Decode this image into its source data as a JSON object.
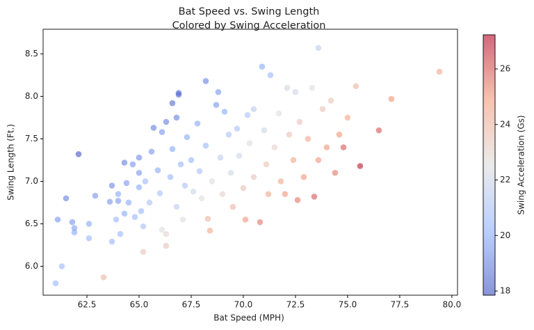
{
  "chart_data": {
    "type": "scatter",
    "title": "Bat Speed vs. Swing Length",
    "subtitle": "Colored by Swing Acceleration",
    "x_label": "Bat Speed (MPH)",
    "y_label": "Swing Length (Ft.)",
    "colorbar_label": "Swing Acceleration (Gs)",
    "colormap": "coolwarm",
    "alpha": 0.6,
    "xlim": [
      60.4,
      80.27
    ],
    "ylim": [
      5.66,
      8.79
    ],
    "clim": [
      17.85,
      27.23
    ],
    "xticks": [
      62.5,
      {
        "value": 65.0,
        "label": "65.0"
      },
      67.5,
      {
        "value": 70.0,
        "label": "70.0"
      },
      72.5,
      {
        "value": 75.0,
        "label": "75.0"
      },
      77.5,
      {
        "value": 80.0,
        "label": "80.0"
      }
    ],
    "yticks": [
      {
        "value": 6.0,
        "label": "6.0"
      },
      6.5,
      {
        "value": 7.0,
        "label": "7.0"
      },
      7.5,
      {
        "value": 8.0,
        "label": "8.0"
      },
      8.5
    ],
    "cticks": [
      18,
      20,
      22,
      24,
      26
    ],
    "x": [
      61.0,
      61.3,
      61.1,
      61.5,
      61.8,
      61.9,
      61.9,
      62.1,
      62.6,
      62.6,
      62.9,
      63.3,
      63.6,
      63.7,
      63.7,
      63.9,
      64.0,
      64.0,
      64.1,
      64.3,
      64.3,
      64.4,
      64.5,
      64.7,
      64.8,
      65.0,
      65.0,
      65.0,
      65.1,
      65.2,
      65.2,
      65.3,
      65.5,
      65.6,
      65.7,
      65.9,
      66.0,
      66.1,
      66.1,
      66.3,
      66.3,
      66.3,
      66.5,
      66.6,
      66.6,
      66.8,
      66.8,
      66.9,
      66.9,
      67.0,
      67.1,
      67.2,
      67.3,
      67.5,
      67.6,
      67.8,
      67.9,
      68.0,
      68.2,
      68.2,
      68.3,
      68.4,
      68.5,
      68.7,
      68.8,
      68.9,
      69.0,
      69.1,
      69.3,
      69.4,
      69.5,
      69.7,
      69.8,
      70.0,
      70.1,
      70.2,
      70.3,
      70.5,
      70.5,
      70.8,
      70.9,
      71.0,
      71.1,
      71.2,
      71.3,
      71.5,
      71.7,
      71.8,
      72.0,
      72.1,
      72.2,
      72.4,
      72.5,
      72.6,
      72.7,
      72.9,
      73.1,
      73.3,
      73.4,
      73.6,
      73.6,
      73.8,
      74.0,
      74.2,
      74.4,
      74.6,
      74.8,
      75.0,
      75.4,
      75.6,
      76.5,
      77.1,
      79.4
    ],
    "values": [
      5.8,
      6.0,
      6.55,
      6.8,
      6.52,
      6.45,
      6.4,
      7.32,
      6.5,
      6.33,
      6.83,
      5.87,
      6.76,
      6.95,
      6.29,
      6.55,
      6.77,
      6.85,
      6.38,
      7.22,
      6.62,
      6.98,
      6.75,
      7.2,
      6.58,
      7.1,
      7.28,
      6.93,
      6.65,
      6.47,
      6.17,
      7.0,
      6.75,
      7.35,
      7.63,
      7.13,
      6.86,
      6.43,
      7.58,
      7.7,
      6.24,
      6.38,
      7.05,
      7.92,
      7.38,
      7.75,
      6.7,
      8.02,
      8.04,
      7.2,
      6.55,
      6.95,
      7.52,
      7.25,
      6.88,
      7.68,
      7.12,
      6.8,
      8.18,
      7.42,
      6.56,
      6.42,
      7.0,
      7.9,
      8.05,
      7.28,
      6.85,
      7.82,
      7.55,
      7.1,
      6.7,
      7.62,
      7.3,
      6.92,
      6.55,
      7.78,
      7.45,
      7.05,
      7.85,
      6.52,
      8.35,
      7.6,
      7.2,
      6.85,
      8.25,
      7.4,
      7.8,
      7.0,
      6.85,
      8.1,
      7.55,
      7.25,
      8.05,
      6.78,
      7.7,
      7.05,
      7.5,
      8.1,
      6.82,
      8.57,
      7.25,
      7.85,
      7.4,
      7.95,
      7.1,
      7.55,
      7.4,
      7.75,
      8.12,
      7.18,
      7.6,
      7.97,
      8.29
    ],
    "color_values": [
      20.5,
      20.5,
      19.5,
      19.0,
      19.5,
      19.8,
      20.0,
      18.0,
      20.0,
      20.5,
      19.5,
      24.0,
      19.5,
      19.2,
      20.5,
      20.5,
      19.5,
      20.0,
      20.5,
      19.0,
      20.0,
      19.5,
      20.0,
      19.5,
      20.5,
      19.5,
      19.2,
      20.0,
      20.5,
      21.0,
      23.5,
      20.5,
      21.0,
      19.5,
      19.0,
      20.0,
      21.0,
      22.5,
      19.5,
      19.0,
      23.5,
      23.0,
      20.5,
      18.5,
      20.0,
      19.0,
      21.5,
      18.5,
      18.5,
      20.5,
      22.5,
      21.0,
      20.0,
      20.5,
      22.0,
      20.0,
      21.0,
      22.5,
      19.0,
      20.5,
      24.0,
      24.5,
      22.5,
      19.5,
      19.5,
      21.5,
      23.0,
      20.0,
      21.0,
      22.0,
      24.0,
      21.0,
      22.0,
      23.5,
      25.0,
      21.0,
      22.5,
      23.5,
      21.5,
      25.5,
      20.0,
      22.0,
      23.5,
      24.5,
      20.5,
      23.0,
      22.5,
      24.5,
      25.0,
      22.0,
      23.5,
      24.5,
      22.0,
      25.5,
      23.5,
      25.0,
      24.5,
      22.5,
      26.0,
      21.5,
      25.0,
      23.5,
      25.0,
      23.5,
      25.5,
      25.0,
      26.0,
      24.5,
      24.0,
      27.0,
      26.0,
      25.0,
      24.5
    ]
  }
}
